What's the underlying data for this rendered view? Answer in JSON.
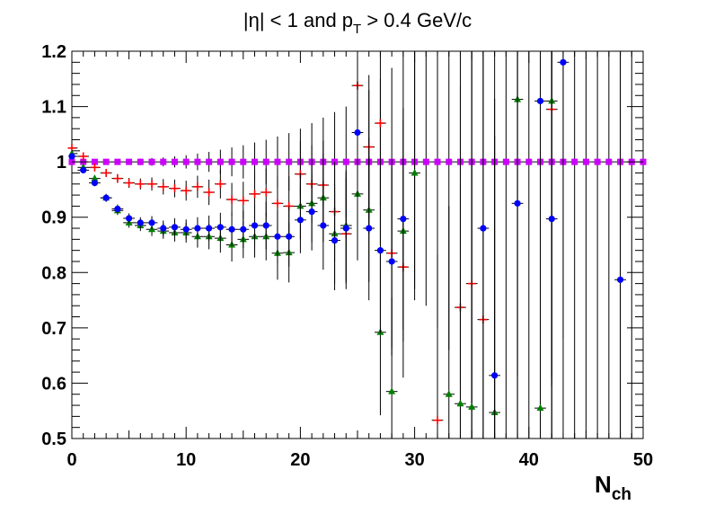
{
  "chart_data": {
    "type": "scatter",
    "title": {
      "main": "|η| < 1 and p",
      "sub": "T",
      "rest": " > 0.4 GeV/c"
    },
    "xlabel": {
      "main": "N",
      "sub": "ch"
    },
    "ylabel": "",
    "xlim": [
      0,
      50
    ],
    "ylim": [
      0.5,
      1.2
    ],
    "xticks": [
      "0",
      "10",
      "20",
      "30",
      "40",
      "50"
    ],
    "yticks": [
      "0.5",
      "0.6",
      "0.7",
      "0.8",
      "0.9",
      "1",
      "1.1",
      "1.2"
    ],
    "grid": false,
    "series": [
      {
        "marker": "square",
        "color": "#cc00ff",
        "x": [
          0,
          1,
          2,
          3,
          4,
          5,
          6,
          7,
          8,
          9,
          10,
          11,
          12,
          13,
          14,
          15,
          16,
          17,
          18,
          19,
          20,
          21,
          22,
          23,
          24,
          25,
          26,
          27,
          28,
          29,
          30,
          31,
          32,
          33,
          34,
          35,
          36,
          37,
          38,
          39,
          40,
          41,
          42,
          43,
          44,
          45,
          46,
          47,
          48,
          49,
          50
        ],
        "y": [
          1,
          1,
          1,
          1,
          1,
          1,
          1,
          1,
          1,
          1,
          1,
          1,
          1,
          1,
          1,
          1,
          1,
          1,
          1,
          1,
          1,
          1,
          1,
          1,
          1,
          1,
          1,
          1,
          1,
          1,
          1,
          1,
          1,
          1,
          1,
          1,
          1,
          1,
          1,
          1,
          1,
          1,
          1,
          1,
          1,
          1,
          1,
          1,
          1,
          1,
          1
        ],
        "yerr": [
          0.003,
          0.003,
          0.003,
          0.003,
          0.004,
          0.005,
          0.006,
          0.007,
          0.008,
          0.01,
          0.012,
          0.015,
          0.018,
          0.022,
          0.026,
          0.03,
          0.035,
          0.04,
          0.046,
          0.052,
          0.06,
          0.07,
          0.08,
          0.09,
          0.1,
          0.115,
          0.13,
          0.15,
          0.17,
          0.2,
          0.23,
          0.26,
          0.3,
          0.34,
          0.4,
          0.45,
          0.5,
          0.5,
          0.5,
          0.5,
          0.5,
          0.5,
          0.5,
          0.5,
          0.5,
          0.5,
          0.5,
          0.5,
          0.5,
          0.5,
          0.5
        ]
      },
      {
        "marker": "cross",
        "color": "#ff0000",
        "x": [
          0,
          1,
          2,
          3,
          4,
          5,
          6,
          7,
          8,
          9,
          10,
          11,
          12,
          13,
          14,
          15,
          16,
          17,
          18,
          19,
          20,
          21,
          22,
          23,
          24,
          25,
          26,
          27,
          28,
          29,
          32,
          34,
          35,
          36,
          42
        ],
        "y": [
          1.025,
          1.01,
          0.99,
          0.98,
          0.97,
          0.962,
          0.96,
          0.96,
          0.955,
          0.952,
          0.948,
          0.955,
          0.945,
          0.96,
          0.932,
          0.93,
          0.942,
          0.945,
          0.925,
          0.92,
          0.978,
          0.96,
          0.958,
          0.91,
          0.87,
          1.138,
          1.027,
          1.07,
          0.835,
          0.81,
          0.533,
          0.737,
          0.78,
          0.715,
          1.095
        ],
        "yerr": [
          0.004,
          0.005,
          0.006,
          0.007,
          0.008,
          0.009,
          0.01,
          0.012,
          0.014,
          0.016,
          0.018,
          0.02,
          0.023,
          0.026,
          0.03,
          0.034,
          0.038,
          0.043,
          0.048,
          0.054,
          0.06,
          0.07,
          0.08,
          0.09,
          0.1,
          0.12,
          0.13,
          0.15,
          0.17,
          0.2,
          0.3,
          0.4,
          0.45,
          0.5,
          0.5
        ]
      },
      {
        "marker": "triangle",
        "color": "#008000",
        "x": [
          0,
          1,
          2,
          3,
          4,
          5,
          6,
          7,
          8,
          9,
          10,
          11,
          12,
          13,
          14,
          15,
          16,
          17,
          18,
          19,
          20,
          21,
          22,
          23,
          24,
          25,
          26,
          27,
          28,
          29,
          30,
          33,
          34,
          35,
          37,
          39,
          41,
          42
        ],
        "y": [
          1.015,
          0.99,
          0.97,
          0.935,
          0.912,
          0.89,
          0.885,
          0.878,
          0.875,
          0.872,
          0.872,
          0.865,
          0.865,
          0.862,
          0.85,
          0.86,
          0.865,
          0.865,
          0.835,
          0.836,
          0.92,
          0.925,
          0.935,
          0.87,
          0.885,
          0.942,
          0.913,
          0.692,
          0.585,
          0.875,
          0.98,
          0.58,
          0.563,
          0.557,
          0.547,
          1.113,
          0.555,
          1.11
        ],
        "yerr": [
          0.004,
          0.005,
          0.006,
          0.007,
          0.008,
          0.009,
          0.01,
          0.012,
          0.014,
          0.016,
          0.018,
          0.02,
          0.023,
          0.026,
          0.03,
          0.034,
          0.038,
          0.043,
          0.048,
          0.054,
          0.06,
          0.07,
          0.08,
          0.09,
          0.1,
          0.12,
          0.13,
          0.15,
          0.17,
          0.2,
          0.23,
          0.34,
          0.4,
          0.45,
          0.5,
          0.5,
          0.5,
          0.5
        ]
      },
      {
        "marker": "circle",
        "color": "#0000ff",
        "x": [
          0,
          1,
          2,
          3,
          4,
          5,
          6,
          7,
          8,
          9,
          10,
          11,
          12,
          13,
          14,
          15,
          16,
          17,
          18,
          19,
          20,
          21,
          22,
          23,
          24,
          25,
          26,
          27,
          28,
          29,
          36,
          37,
          39,
          41,
          42,
          43,
          48
        ],
        "y": [
          1.01,
          0.985,
          0.962,
          0.935,
          0.915,
          0.898,
          0.89,
          0.89,
          0.88,
          0.882,
          0.878,
          0.88,
          0.88,
          0.882,
          0.878,
          0.878,
          0.885,
          0.885,
          0.865,
          0.865,
          0.895,
          0.91,
          0.885,
          0.858,
          0.88,
          1.053,
          0.88,
          0.84,
          0.82,
          0.897,
          0.88,
          0.614,
          0.925,
          1.11,
          0.897,
          1.18,
          0.787
        ],
        "yerr": [
          0.004,
          0.005,
          0.006,
          0.007,
          0.008,
          0.009,
          0.01,
          0.012,
          0.014,
          0.016,
          0.018,
          0.02,
          0.023,
          0.026,
          0.03,
          0.034,
          0.038,
          0.043,
          0.048,
          0.054,
          0.06,
          0.07,
          0.08,
          0.09,
          0.1,
          0.12,
          0.13,
          0.15,
          0.17,
          0.2,
          0.5,
          0.5,
          0.5,
          0.5,
          0.5,
          0.5,
          0.5
        ]
      }
    ]
  }
}
